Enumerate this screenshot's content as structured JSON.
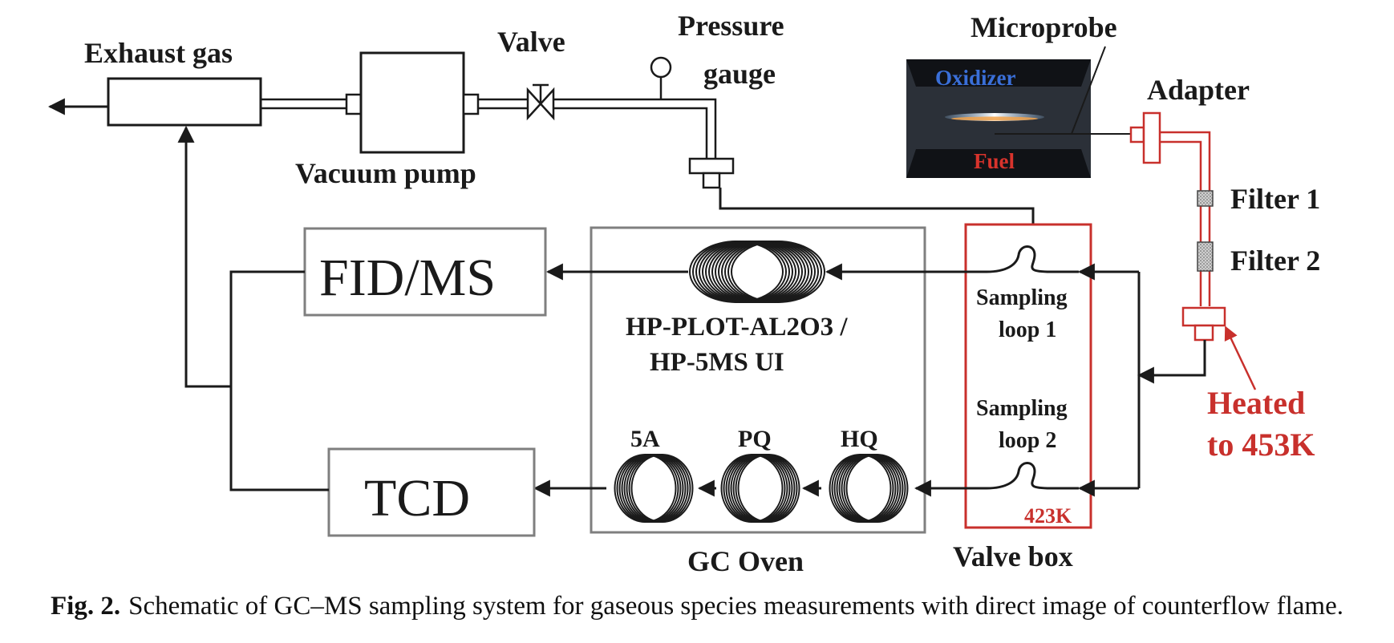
{
  "labels": {
    "exhaust_gas": "Exhaust gas",
    "valve": "Valve",
    "pressure_gauge_line1": "Pressure",
    "pressure_gauge_line2": "gauge",
    "vacuum_pump": "Vacuum pump",
    "microprobe": "Microprobe",
    "oxidizer": "Oxidizer",
    "fuel": "Fuel",
    "adapter": "Adapter",
    "filter1": "Filter 1",
    "filter2": "Filter 2",
    "heated_line1": "Heated",
    "heated_line2": "to 453K",
    "fid_ms": "FID/MS",
    "tcd": "TCD",
    "column_line1": "HP-PLOT-AL2O3 /",
    "column_line2": "HP-5MS UI",
    "col_5a": "5A",
    "col_pq": "PQ",
    "col_hq": "HQ",
    "gc_oven": "GC Oven",
    "valve_box": "Valve box",
    "sampling_loop1_line1": "Sampling",
    "sampling_loop1_line2": "loop 1",
    "sampling_loop2_line1": "Sampling",
    "sampling_loop2_line2": "loop 2",
    "valve_box_temp": "423K"
  },
  "caption": {
    "label": "Fig. 2.",
    "text": "Schematic of GC–MS sampling system for gaseous species measurements with direct image of counterflow flame."
  },
  "colors": {
    "line": "#1a1a1a",
    "heated_line": "#c8302c",
    "box_gray": "#7f7f7f",
    "flame_panel": "#2b3038",
    "oxidizer_text": "#3a6fd8",
    "fuel_text": "#d8332c"
  }
}
